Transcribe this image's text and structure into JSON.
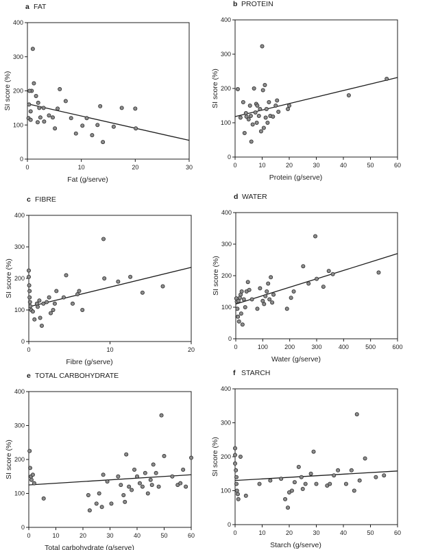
{
  "colors": {
    "ink": "#1c1c1c",
    "point_fill": "#8c8c8c",
    "point_stroke": "#2a2a2a",
    "background": "#ffffff"
  },
  "chart_data": [
    {
      "type": "scatter",
      "letter": "a",
      "title": "FAT",
      "xlabel": "Fat (g/serve)",
      "ylabel": "SI score (%)",
      "xlim": [
        0,
        30
      ],
      "ylim": [
        0,
        400
      ],
      "xticks": [
        0,
        10,
        20,
        30
      ],
      "yticks": [
        0,
        100,
        200,
        300,
        400
      ],
      "grid": false,
      "points": [
        [
          1,
          323
        ],
        [
          0.8,
          200
        ],
        [
          1.2,
          222
        ],
        [
          0.4,
          200
        ],
        [
          0.3,
          160
        ],
        [
          0.6,
          140
        ],
        [
          0.2,
          120
        ],
        [
          0.6,
          115
        ],
        [
          1.6,
          185
        ],
        [
          2,
          165
        ],
        [
          2.2,
          150
        ],
        [
          2.4,
          122
        ],
        [
          3,
          150
        ],
        [
          3.1,
          110
        ],
        [
          1.9,
          108
        ],
        [
          4,
          128
        ],
        [
          4.7,
          122
        ],
        [
          5.1,
          90
        ],
        [
          5.6,
          148
        ],
        [
          6,
          205
        ],
        [
          7.1,
          170
        ],
        [
          8.1,
          120
        ],
        [
          9,
          75
        ],
        [
          10.2,
          98
        ],
        [
          11,
          120
        ],
        [
          12,
          70
        ],
        [
          13,
          100
        ],
        [
          13.5,
          155
        ],
        [
          14,
          50
        ],
        [
          16,
          95
        ],
        [
          17.5,
          150
        ],
        [
          20,
          148
        ],
        [
          20.1,
          90
        ]
      ],
      "trendline": [
        [
          0,
          162
        ],
        [
          30,
          55
        ]
      ]
    },
    {
      "type": "scatter",
      "letter": "b",
      "title": "PROTEIN",
      "xlabel": "Protein (g/serve)",
      "ylabel": "SI score (%)",
      "xlim": [
        0,
        60
      ],
      "ylim": [
        0,
        400
      ],
      "xticks": [
        0,
        10,
        20,
        30,
        40,
        50,
        60
      ],
      "yticks": [
        0,
        100,
        200,
        300,
        400
      ],
      "grid": false,
      "points": [
        [
          1,
          198
        ],
        [
          2,
          115
        ],
        [
          3,
          160
        ],
        [
          3.5,
          70
        ],
        [
          4,
          128
        ],
        [
          4.2,
          118
        ],
        [
          5,
          110
        ],
        [
          5.5,
          150
        ],
        [
          5.8,
          120
        ],
        [
          6,
          45
        ],
        [
          6.5,
          95
        ],
        [
          7,
          200
        ],
        [
          7.5,
          130
        ],
        [
          7.8,
          155
        ],
        [
          8,
          100
        ],
        [
          8.2,
          150
        ],
        [
          8.8,
          120
        ],
        [
          9.2,
          140
        ],
        [
          9.6,
          75
        ],
        [
          10,
          323
        ],
        [
          10.3,
          195
        ],
        [
          10.6,
          85
        ],
        [
          11,
          210
        ],
        [
          11.3,
          115
        ],
        [
          11.6,
          140
        ],
        [
          12,
          100
        ],
        [
          12.5,
          160
        ],
        [
          13,
          120
        ],
        [
          14,
          118
        ],
        [
          15,
          150
        ],
        [
          15.5,
          165
        ],
        [
          16,
          132
        ],
        [
          19.5,
          140
        ],
        [
          20,
          150
        ],
        [
          42,
          180
        ],
        [
          56,
          228
        ]
      ],
      "trendline": [
        [
          0,
          118
        ],
        [
          60,
          232
        ]
      ]
    },
    {
      "type": "scatter",
      "letter": "c",
      "title": "FIBRE",
      "xlabel": "Fibre (g/serve)",
      "ylabel": "SI score (%)",
      "xlim": [
        0,
        20
      ],
      "ylim": [
        0,
        400
      ],
      "xticks": [
        0,
        10,
        20
      ],
      "yticks": [
        0,
        100,
        200,
        300,
        400
      ],
      "grid": false,
      "points": [
        [
          0,
          225
        ],
        [
          0,
          205
        ],
        [
          0.05,
          178
        ],
        [
          0.1,
          160
        ],
        [
          0.1,
          140
        ],
        [
          0.15,
          125
        ],
        [
          0.2,
          112
        ],
        [
          0.3,
          100
        ],
        [
          0.5,
          95
        ],
        [
          0.7,
          70
        ],
        [
          1,
          120
        ],
        [
          1.1,
          110
        ],
        [
          1.3,
          130
        ],
        [
          1.4,
          75
        ],
        [
          1.6,
          50
        ],
        [
          1.8,
          120
        ],
        [
          2.2,
          125
        ],
        [
          2.5,
          140
        ],
        [
          2.7,
          90
        ],
        [
          3,
          100
        ],
        [
          3.2,
          120
        ],
        [
          3.4,
          160
        ],
        [
          4.3,
          140
        ],
        [
          4.6,
          210
        ],
        [
          5.4,
          120
        ],
        [
          6,
          150
        ],
        [
          6.2,
          160
        ],
        [
          6.6,
          100
        ],
        [
          9.2,
          325
        ],
        [
          9.3,
          200
        ],
        [
          11,
          190
        ],
        [
          12.5,
          205
        ],
        [
          14,
          155
        ],
        [
          16.5,
          175
        ]
      ],
      "trendline": [
        [
          0,
          110
        ],
        [
          20,
          235
        ]
      ]
    },
    {
      "type": "scatter",
      "letter": "d",
      "title": "WATER",
      "xlabel": "Water (g/serve)",
      "ylabel": "SI score (%)",
      "xlim": [
        0,
        600
      ],
      "ylim": [
        0,
        400
      ],
      "xticks": [
        0,
        100,
        200,
        300,
        400,
        500,
        600
      ],
      "yticks": [
        0,
        100,
        200,
        300,
        400
      ],
      "grid": false,
      "points": [
        [
          2,
          128
        ],
        [
          4,
          118
        ],
        [
          6,
          95
        ],
        [
          8,
          70
        ],
        [
          10,
          120
        ],
        [
          12,
          55
        ],
        [
          15,
          130
        ],
        [
          18,
          140
        ],
        [
          20,
          80
        ],
        [
          22,
          150
        ],
        [
          25,
          45
        ],
        [
          30,
          125
        ],
        [
          35,
          100
        ],
        [
          40,
          150
        ],
        [
          45,
          180
        ],
        [
          50,
          155
        ],
        [
          60,
          125
        ],
        [
          80,
          95
        ],
        [
          90,
          160
        ],
        [
          100,
          120
        ],
        [
          105,
          110
        ],
        [
          110,
          135
        ],
        [
          115,
          150
        ],
        [
          120,
          175
        ],
        [
          125,
          125
        ],
        [
          130,
          195
        ],
        [
          135,
          115
        ],
        [
          140,
          140
        ],
        [
          190,
          95
        ],
        [
          205,
          130
        ],
        [
          215,
          150
        ],
        [
          250,
          230
        ],
        [
          270,
          175
        ],
        [
          295,
          325
        ],
        [
          300,
          190
        ],
        [
          325,
          165
        ],
        [
          345,
          215
        ],
        [
          360,
          205
        ],
        [
          530,
          210
        ]
      ],
      "trendline": [
        [
          0,
          110
        ],
        [
          600,
          270
        ]
      ]
    },
    {
      "type": "scatter",
      "letter": "e",
      "title": "TOTAL CARBOHYDRATE",
      "xlabel": "Total carbohydrate (g/serve)",
      "ylabel": "SI score (%)",
      "xlim": [
        0,
        60
      ],
      "ylim": [
        0,
        400
      ],
      "xticks": [
        0,
        10,
        20,
        30,
        40,
        50,
        60
      ],
      "yticks": [
        0,
        100,
        200,
        300,
        400
      ],
      "grid": false,
      "points": [
        [
          0.3,
          225
        ],
        [
          0.5,
          175
        ],
        [
          0.8,
          150
        ],
        [
          1,
          140
        ],
        [
          1.5,
          155
        ],
        [
          2,
          130
        ],
        [
          5.5,
          85
        ],
        [
          22,
          95
        ],
        [
          22.5,
          50
        ],
        [
          25,
          70
        ],
        [
          26,
          100
        ],
        [
          27,
          60
        ],
        [
          27.5,
          155
        ],
        [
          29,
          135
        ],
        [
          30.5,
          70
        ],
        [
          33,
          150
        ],
        [
          34,
          125
        ],
        [
          35,
          95
        ],
        [
          35.5,
          75
        ],
        [
          36,
          215
        ],
        [
          37,
          120
        ],
        [
          38,
          110
        ],
        [
          39,
          170
        ],
        [
          40,
          150
        ],
        [
          41,
          130
        ],
        [
          42,
          120
        ],
        [
          43,
          160
        ],
        [
          44,
          100
        ],
        [
          45,
          140
        ],
        [
          45.5,
          125
        ],
        [
          46,
          185
        ],
        [
          47,
          160
        ],
        [
          48,
          120
        ],
        [
          49,
          330
        ],
        [
          50,
          210
        ],
        [
          53,
          150
        ],
        [
          55,
          125
        ],
        [
          56,
          130
        ],
        [
          57,
          170
        ],
        [
          58,
          120
        ],
        [
          60,
          205
        ]
      ],
      "trendline": [
        [
          0,
          125
        ],
        [
          60,
          155
        ]
      ]
    },
    {
      "type": "scatter",
      "letter": "f",
      "title": "STARCH",
      "xlabel": "Starch (g/serve)",
      "ylabel": "SI score (%)",
      "xlim": [
        0,
        60
      ],
      "ylim": [
        0,
        400
      ],
      "xticks": [
        0,
        10,
        20,
        30,
        40,
        50,
        60
      ],
      "yticks": [
        0,
        100,
        200,
        300,
        400
      ],
      "grid": false,
      "points": [
        [
          0,
          225
        ],
        [
          0,
          205
        ],
        [
          0,
          180
        ],
        [
          0.3,
          160
        ],
        [
          0.5,
          140
        ],
        [
          0.5,
          120
        ],
        [
          0.7,
          100
        ],
        [
          1,
          90
        ],
        [
          1.2,
          75
        ],
        [
          2,
          200
        ],
        [
          4,
          85
        ],
        [
          9,
          120
        ],
        [
          13,
          130
        ],
        [
          17,
          135
        ],
        [
          18.5,
          75
        ],
        [
          19.5,
          50
        ],
        [
          20,
          95
        ],
        [
          21,
          100
        ],
        [
          22,
          125
        ],
        [
          23.5,
          170
        ],
        [
          24.5,
          140
        ],
        [
          25,
          105
        ],
        [
          26,
          120
        ],
        [
          28,
          150
        ],
        [
          29,
          215
        ],
        [
          30,
          120
        ],
        [
          34,
          115
        ],
        [
          35,
          120
        ],
        [
          36.5,
          145
        ],
        [
          38,
          160
        ],
        [
          41,
          120
        ],
        [
          43,
          160
        ],
        [
          44,
          100
        ],
        [
          45,
          325
        ],
        [
          46,
          130
        ],
        [
          48,
          195
        ],
        [
          52,
          140
        ],
        [
          55,
          145
        ]
      ],
      "trendline": [
        [
          0,
          130
        ],
        [
          60,
          158
        ]
      ]
    }
  ]
}
